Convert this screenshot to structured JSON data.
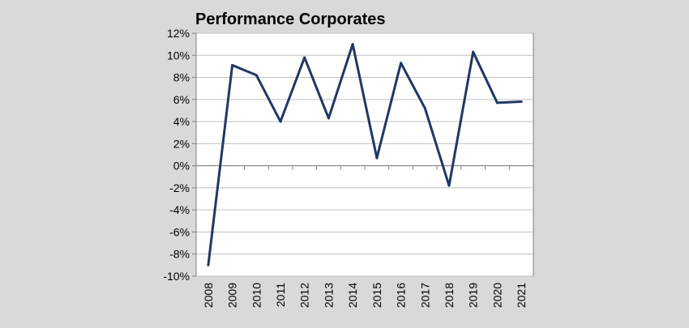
{
  "chart_data": {
    "type": "line",
    "title": "Performance Corporates",
    "xlabel": "",
    "ylabel": "",
    "categories": [
      "2008",
      "2009",
      "2010",
      "2011",
      "2012",
      "2013",
      "2014",
      "2015",
      "2016",
      "2017",
      "2018",
      "2019",
      "2020",
      "2021"
    ],
    "series": [
      {
        "values": [
          -9.0,
          9.1,
          8.2,
          4.0,
          9.8,
          4.3,
          11.0,
          0.7,
          9.3,
          5.2,
          -1.8,
          10.3,
          5.7,
          5.8
        ]
      }
    ],
    "ylim": [
      -10,
      12
    ],
    "yticks": [
      12,
      10,
      8,
      6,
      4,
      2,
      0,
      -2,
      -4,
      -6,
      -8,
      -10
    ],
    "ytick_labels": [
      "12%",
      "10%",
      "8%",
      "6%",
      "4%",
      "2%",
      "0%",
      "-2%",
      "-4%",
      "-6%",
      "-8%",
      "-10%"
    ],
    "grid": true,
    "legend": "none",
    "colors": {
      "line": "#1f3864",
      "background": "#d9d9d9",
      "plot_area": "#ffffff",
      "grid": "#c0c0c0"
    }
  }
}
